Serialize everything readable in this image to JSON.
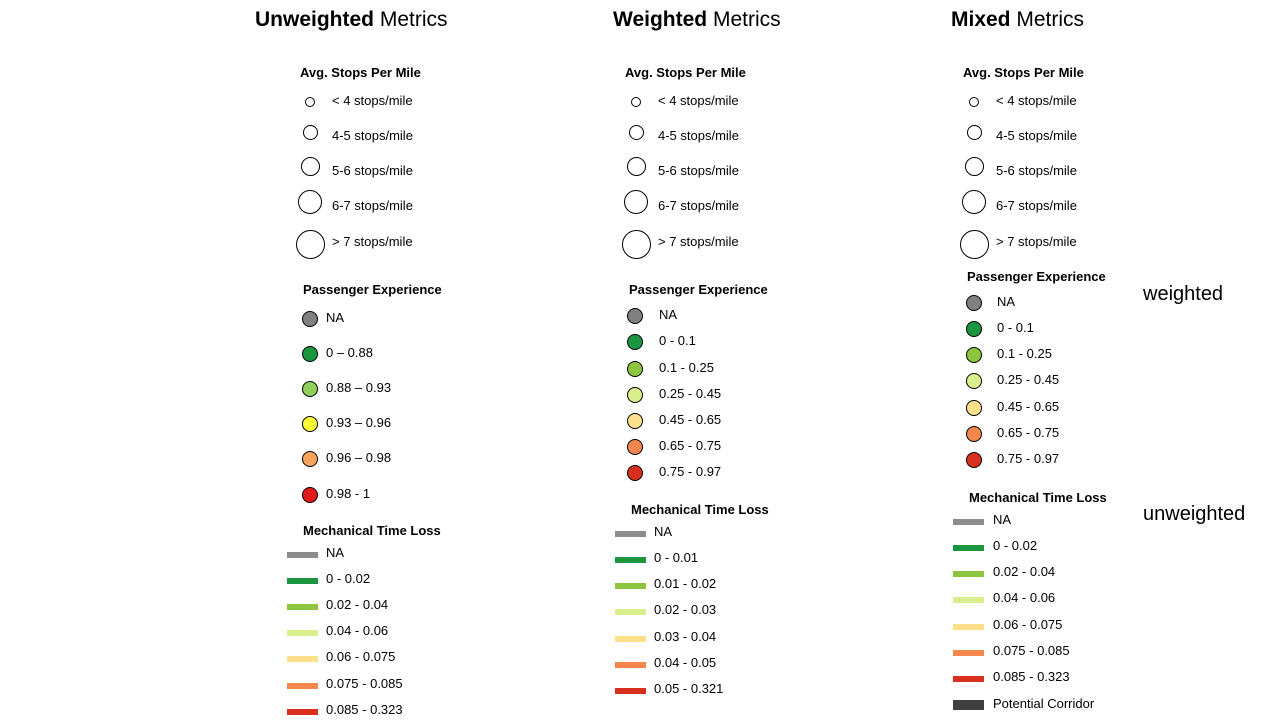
{
  "columns": [
    {
      "title_bold": "Unweighted",
      "title_rest": " Metrics",
      "stops_header": "Avg. Stops Per Mile",
      "stops": [
        "< 4 stops/mile",
        "4-5 stops/mile",
        "5-6 stops/mile",
        "6-7 stops/mile",
        "> 7 stops/mile"
      ],
      "pe_header": "Passenger Experience",
      "pe": [
        {
          "label": "NA",
          "color": "#808080"
        },
        {
          "label": "0 – 0.88",
          "color": "#1a9641"
        },
        {
          "label": "0.88 – 0.93",
          "color": "#8fcf5a"
        },
        {
          "label": "0.93 – 0.96",
          "color": "#ffff33"
        },
        {
          "label": "0.96 – 0.98",
          "color": "#f9a45a"
        },
        {
          "label": "0.98 - 1",
          "color": "#e31a1c"
        }
      ],
      "mtl_header": "Mechanical Time Loss",
      "mtl": [
        {
          "label": "NA",
          "color": "#8c8c8c"
        },
        {
          "label": "0 - 0.02",
          "color": "#1a9641"
        },
        {
          "label": "0.02 - 0.04",
          "color": "#8cc63f"
        },
        {
          "label": "0.04 - 0.06",
          "color": "#d9ef8b"
        },
        {
          "label": "0.06 - 0.075",
          "color": "#fee08b"
        },
        {
          "label": "0.075 - 0.085",
          "color": "#f4874e"
        },
        {
          "label": "0.085 - 0.323",
          "color": "#d7301f"
        }
      ]
    },
    {
      "title_bold": "Weighted",
      "title_rest": " Metrics",
      "stops_header": "Avg. Stops Per Mile",
      "stops": [
        "< 4 stops/mile",
        "4-5 stops/mile",
        "5-6 stops/mile",
        "6-7 stops/mile",
        "> 7 stops/mile"
      ],
      "pe_header": "Passenger Experience",
      "pe": [
        {
          "label": "NA",
          "color": "#808080"
        },
        {
          "label": "0 - 0.1",
          "color": "#1a9641"
        },
        {
          "label": "0.1 - 0.25",
          "color": "#8cc63f"
        },
        {
          "label": "0.25 - 0.45",
          "color": "#d9ef8b"
        },
        {
          "label": "0.45 - 0.65",
          "color": "#fee08b"
        },
        {
          "label": "0.65 - 0.75",
          "color": "#f4874e"
        },
        {
          "label": "0.75 - 0.97",
          "color": "#d7301f"
        }
      ],
      "mtl_header": "Mechanical Time Loss",
      "mtl": [
        {
          "label": "NA",
          "color": "#8c8c8c"
        },
        {
          "label": "0 - 0.01",
          "color": "#1a9641"
        },
        {
          "label": "0.01 - 0.02",
          "color": "#8cc63f"
        },
        {
          "label": "0.02 - 0.03",
          "color": "#d9ef8b"
        },
        {
          "label": "0.03 - 0.04",
          "color": "#fee08b"
        },
        {
          "label": "0.04 - 0.05",
          "color": "#f4874e"
        },
        {
          "label": "0.05 - 0.321",
          "color": "#d7301f"
        }
      ]
    },
    {
      "title_bold": "Mixed",
      "title_rest": " Metrics",
      "stops_header": "Avg. Stops Per Mile",
      "stops": [
        "< 4 stops/mile",
        "4-5 stops/mile",
        "5-6 stops/mile",
        "6-7 stops/mile",
        "> 7 stops/mile"
      ],
      "pe_header": "Passenger Experience",
      "pe": [
        {
          "label": "NA",
          "color": "#808080"
        },
        {
          "label": "0 - 0.1",
          "color": "#1a9641"
        },
        {
          "label": "0.1 - 0.25",
          "color": "#8cc63f"
        },
        {
          "label": "0.25 - 0.45",
          "color": "#d9ef8b"
        },
        {
          "label": "0.45 - 0.65",
          "color": "#fee08b"
        },
        {
          "label": "0.65 - 0.75",
          "color": "#f4874e"
        },
        {
          "label": "0.75 - 0.97",
          "color": "#d7301f"
        }
      ],
      "mtl_header": "Mechanical Time Loss",
      "mtl": [
        {
          "label": "NA",
          "color": "#8c8c8c"
        },
        {
          "label": "0 - 0.02",
          "color": "#1a9641"
        },
        {
          "label": "0.02 - 0.04",
          "color": "#8cc63f"
        },
        {
          "label": "0.04 - 0.06",
          "color": "#d9ef8b"
        },
        {
          "label": "0.06 - 0.075",
          "color": "#fee08b"
        },
        {
          "label": "0.075 - 0.085",
          "color": "#f4874e"
        },
        {
          "label": "0.085 - 0.323",
          "color": "#d7301f"
        },
        {
          "label": "Potential Corridor",
          "color": "#404040"
        }
      ]
    }
  ],
  "side_labels": {
    "weighted": "weighted",
    "unweighted": "unweighted"
  }
}
